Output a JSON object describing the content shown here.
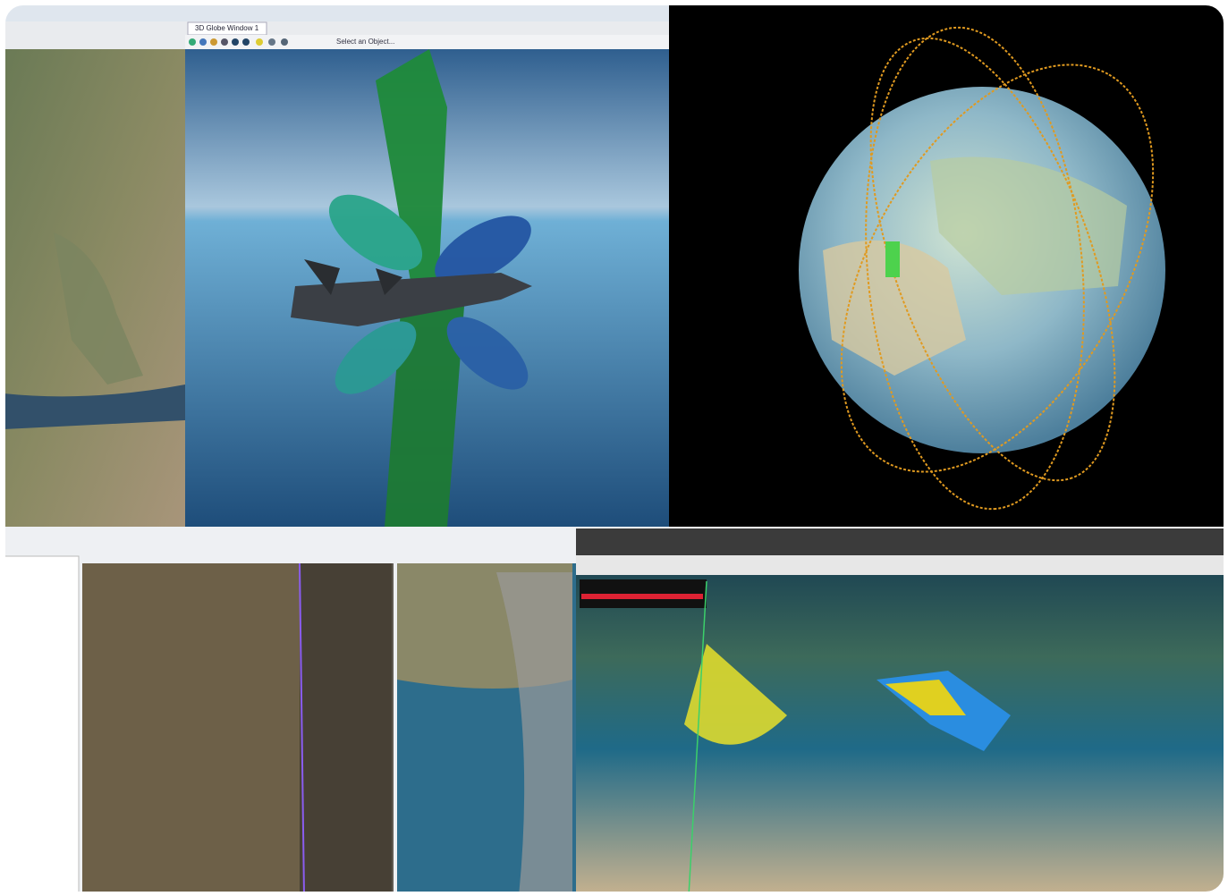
{
  "top_left_window": {
    "tab_title": "3D Globe Window 1",
    "object_selector": "Select an Object..."
  }
}
